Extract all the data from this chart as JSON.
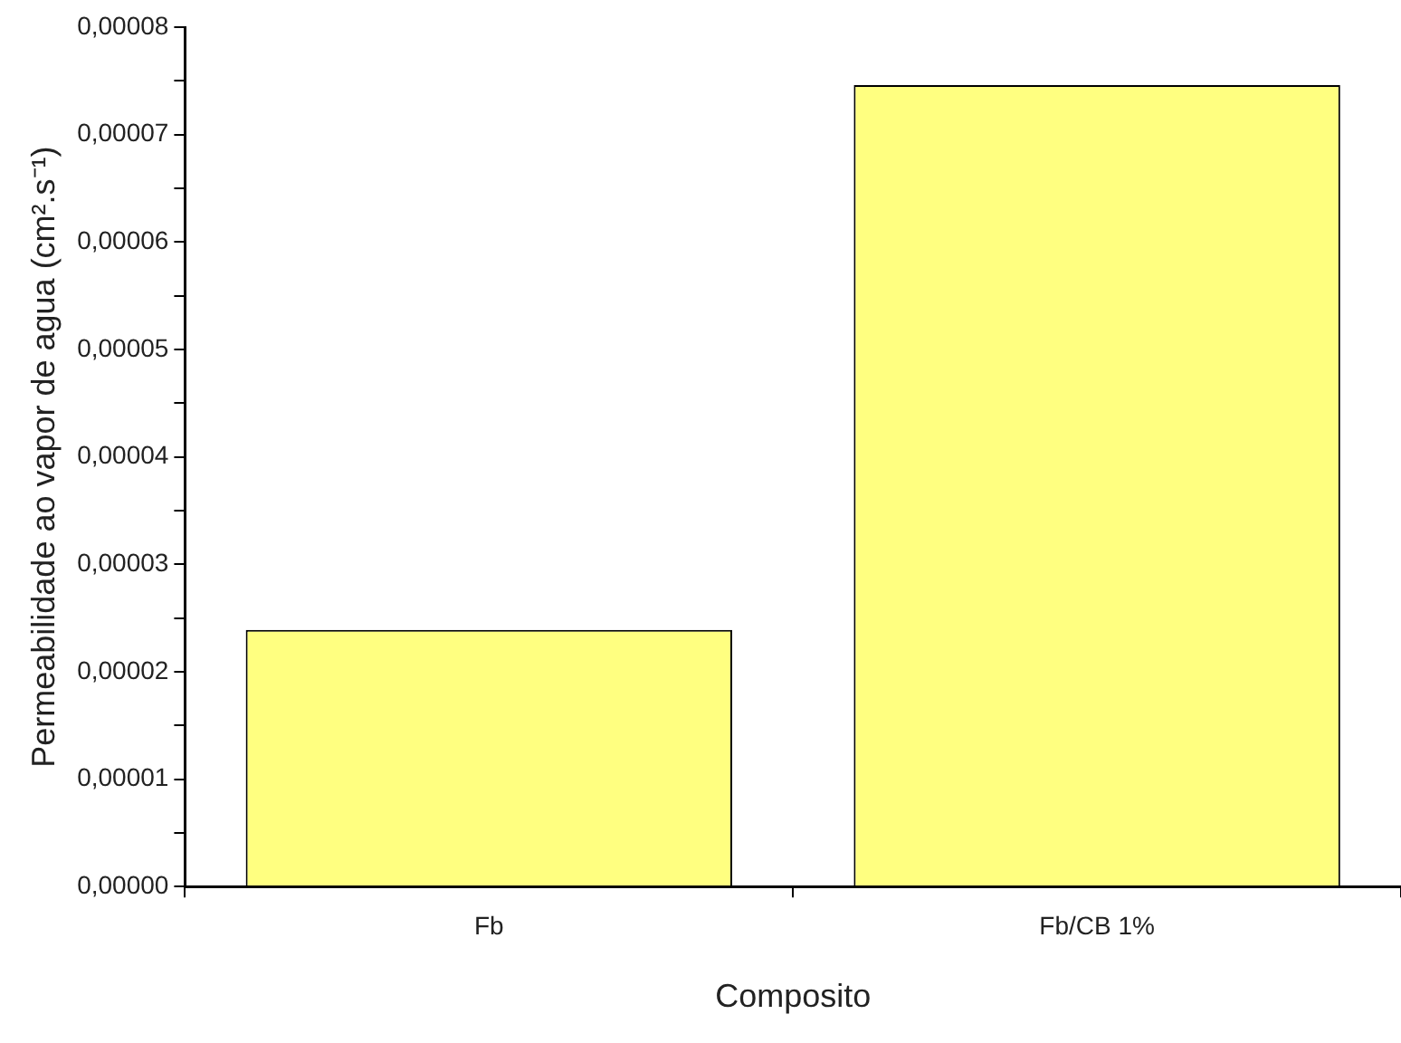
{
  "chart_data": {
    "type": "bar",
    "xlabel": "Composito",
    "ylabel": "Permeabilidade ao vapor de agua (cm².s⁻¹)",
    "categories": [
      "Fb",
      "Fb/CB 1%"
    ],
    "values": [
      2.39e-05,
      7.46e-05
    ],
    "color": "#ffff80",
    "ylim": [
      0,
      8e-05
    ],
    "yticks": [
      {
        "value": 0,
        "label": "0,00000"
      },
      {
        "value": 5e-06,
        "label": null
      },
      {
        "value": 1e-05,
        "label": "0,00001"
      },
      {
        "value": 1.5e-05,
        "label": null
      },
      {
        "value": 2e-05,
        "label": "0,00002"
      },
      {
        "value": 2.5e-05,
        "label": null
      },
      {
        "value": 3e-05,
        "label": "0,00003"
      },
      {
        "value": 3.5e-05,
        "label": null
      },
      {
        "value": 4e-05,
        "label": "0,00004"
      },
      {
        "value": 4.5e-05,
        "label": null
      },
      {
        "value": 5e-05,
        "label": "0,00005"
      },
      {
        "value": 5.5e-05,
        "label": null
      },
      {
        "value": 6e-05,
        "label": "0,00006"
      },
      {
        "value": 6.5e-05,
        "label": null
      },
      {
        "value": 7e-05,
        "label": "0,00007"
      },
      {
        "value": 7.5e-05,
        "label": null
      },
      {
        "value": 8e-05,
        "label": "0,00008"
      }
    ],
    "grid": false,
    "legend": false
  }
}
